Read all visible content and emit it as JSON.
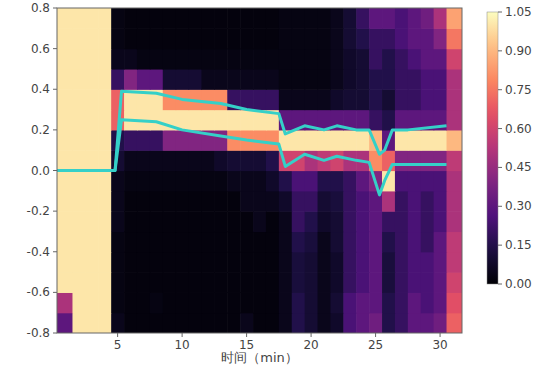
{
  "chart_data": {
    "type": "heatmap",
    "x_label": "时间（min）",
    "xlim": [
      0.3,
      31.7
    ],
    "ylim": [
      -0.8,
      0.8
    ],
    "xticks": [
      5,
      10,
      15,
      20,
      25,
      30
    ],
    "yticks": [
      -0.8,
      -0.6,
      -0.4,
      -0.2,
      {
        "value": 0,
        "label": "0.0"
      },
      0.2,
      0.4,
      0.6,
      0.8
    ],
    "x_edges": [
      0.3,
      1.5,
      2.5,
      3.5,
      4.5,
      5.5,
      6.5,
      7.5,
      8.5,
      9.5,
      10.5,
      11.5,
      12.5,
      13.5,
      14.5,
      15.5,
      16.5,
      17.5,
      18.5,
      19.5,
      20.5,
      21.5,
      22.5,
      23.5,
      24.5,
      25.5,
      26.5,
      27.5,
      28.5,
      29.5,
      30.5,
      31.7
    ],
    "y_edges": [
      -0.8,
      -0.7,
      -0.6,
      -0.5,
      -0.4,
      -0.3,
      -0.2,
      -0.1,
      0.0,
      0.1,
      0.2,
      0.3,
      0.4,
      0.5,
      0.6,
      0.7,
      0.8
    ],
    "cells": [
      [
        0.3,
        1,
        1,
        1,
        0.05,
        0.02,
        0.02,
        0.02,
        0.02,
        0.02,
        0.02,
        0.02,
        0.02,
        0.02,
        0.05,
        0.02,
        0.02,
        0.05,
        0.15,
        0.1,
        0.05,
        0.08,
        0.25,
        0.3,
        0.35,
        0.15,
        0.2,
        0.3,
        0.3,
        0.35,
        0.7
      ],
      [
        0.5,
        1,
        1,
        1,
        0.03,
        0.02,
        0.02,
        0.03,
        0.02,
        0.02,
        0.02,
        0.02,
        0.02,
        0.02,
        0.02,
        0.02,
        0.02,
        0.05,
        0.15,
        0.1,
        0.05,
        0.1,
        0.25,
        0.3,
        0.3,
        0.15,
        0.2,
        0.3,
        0.25,
        0.3,
        0.65
      ],
      [
        1,
        1,
        1,
        1,
        0.03,
        0.02,
        0.02,
        0.02,
        0.02,
        0.02,
        0.02,
        0.02,
        0.02,
        0.02,
        0.02,
        0.02,
        0.02,
        0.05,
        0.12,
        0.1,
        0.05,
        0.08,
        0.2,
        0.25,
        0.3,
        0.12,
        0.2,
        0.25,
        0.25,
        0.3,
        0.6
      ],
      [
        1,
        1,
        1,
        1,
        0.03,
        0.02,
        0.02,
        0.02,
        0.02,
        0.02,
        0.02,
        0.02,
        0.02,
        0.02,
        0.02,
        0.02,
        0.02,
        0.05,
        0.12,
        0.1,
        0.05,
        0.08,
        0.2,
        0.25,
        0.3,
        0.12,
        0.2,
        0.25,
        0.25,
        0.3,
        0.55
      ],
      [
        1,
        1,
        1,
        1,
        0.03,
        0.02,
        0.02,
        0.02,
        0.02,
        0.02,
        0.02,
        0.02,
        0.02,
        0.02,
        0.02,
        0.02,
        0.02,
        0.05,
        0.15,
        0.12,
        0.05,
        0.1,
        0.2,
        0.25,
        0.3,
        0.15,
        0.2,
        0.25,
        0.2,
        0.3,
        0.55
      ],
      [
        1,
        1,
        1,
        1,
        0.05,
        0.02,
        0.02,
        0.02,
        0.02,
        0.02,
        0.02,
        0.02,
        0.02,
        0.02,
        0.02,
        0.05,
        0.02,
        0.05,
        0.2,
        0.15,
        0.08,
        0.1,
        0.2,
        0.25,
        0.3,
        0.2,
        0.2,
        0.25,
        0.2,
        0.25,
        0.5
      ],
      [
        1,
        1,
        1,
        1,
        0.05,
        0.02,
        0.02,
        0.02,
        0.02,
        0.02,
        0.02,
        0.02,
        0.02,
        0.02,
        0.05,
        0.05,
        0.05,
        0.08,
        0.2,
        0.2,
        0.1,
        0.12,
        0.2,
        0.25,
        0.3,
        0.5,
        0.2,
        0.25,
        0.2,
        0.25,
        0.5
      ],
      [
        1,
        1,
        1,
        1,
        0.05,
        0.03,
        0.03,
        0.03,
        0.03,
        0.03,
        0.03,
        0.03,
        0.03,
        0.05,
        0.05,
        0.05,
        0.08,
        0.15,
        0.25,
        0.25,
        0.15,
        0.15,
        0.2,
        0.3,
        0.4,
        1,
        0.25,
        0.25,
        0.25,
        0.25,
        0.5
      ],
      [
        1,
        1,
        1,
        1,
        0.1,
        0.05,
        0.05,
        0.05,
        0.05,
        0.05,
        0.05,
        0.05,
        0.08,
        0.1,
        0.1,
        0.1,
        0.15,
        0.6,
        0.6,
        0.5,
        0.55,
        0.6,
        0.5,
        0.5,
        0.8,
        0.7,
        0.4,
        0.4,
        0.4,
        0.4,
        0.55
      ],
      [
        1,
        1,
        1,
        1,
        0.15,
        0.2,
        0.2,
        0.2,
        0.4,
        0.4,
        0.4,
        0.4,
        0.4,
        0.8,
        0.8,
        0.8,
        0.8,
        1,
        1,
        1,
        1,
        1,
        1,
        1,
        0.9,
        0.3,
        1,
        1,
        1,
        1,
        0.9
      ],
      [
        1,
        1,
        1,
        1,
        0.7,
        1,
        1,
        1,
        1,
        1,
        1,
        1,
        1,
        1,
        1,
        1,
        1,
        0.3,
        0.3,
        0.3,
        0.3,
        0.3,
        0.3,
        0.3,
        0.2,
        0.15,
        0.3,
        0.3,
        0.3,
        0.3,
        0.5
      ],
      [
        1,
        1,
        1,
        1,
        0.7,
        1,
        1,
        1,
        0.8,
        0.8,
        0.8,
        0.8,
        0.8,
        0.2,
        0.2,
        0.2,
        0.2,
        0.05,
        0.05,
        0.05,
        0.05,
        0.08,
        0.1,
        0.1,
        0.15,
        0.1,
        0.2,
        0.2,
        0.25,
        0.25,
        0.5
      ],
      [
        1,
        1,
        1,
        1,
        0.2,
        0.4,
        0.3,
        0.3,
        0.1,
        0.1,
        0.1,
        0.05,
        0.05,
        0.05,
        0.05,
        0.05,
        0.05,
        0.03,
        0.03,
        0.03,
        0.03,
        0.05,
        0.08,
        0.1,
        0.15,
        0.15,
        0.2,
        0.2,
        0.25,
        0.25,
        0.5
      ],
      [
        1,
        1,
        1,
        1,
        0.05,
        0.05,
        0.03,
        0.03,
        0.03,
        0.03,
        0.03,
        0.03,
        0.03,
        0.03,
        0.03,
        0.03,
        0.03,
        0.03,
        0.03,
        0.03,
        0.03,
        0.05,
        0.08,
        0.1,
        0.2,
        0.15,
        0.2,
        0.25,
        0.3,
        0.3,
        0.6
      ],
      [
        1,
        1,
        1,
        1,
        0.03,
        0.02,
        0.02,
        0.02,
        0.02,
        0.02,
        0.02,
        0.02,
        0.02,
        0.02,
        0.02,
        0.02,
        0.02,
        0.03,
        0.03,
        0.03,
        0.03,
        0.05,
        0.1,
        0.15,
        0.2,
        0.2,
        0.25,
        0.3,
        0.3,
        0.4,
        0.75
      ],
      [
        1,
        1,
        1,
        1,
        0.03,
        0.02,
        0.02,
        0.02,
        0.02,
        0.02,
        0.02,
        0.02,
        0.02,
        0.02,
        0.02,
        0.02,
        0.02,
        0.03,
        0.03,
        0.03,
        0.03,
        0.05,
        0.1,
        0.2,
        0.3,
        0.3,
        0.25,
        0.3,
        0.35,
        0.5,
        0.85
      ]
    ],
    "colorbar_range": [
      0,
      1.05
    ],
    "colorbar_ticks": [
      {
        "value": 0,
        "label": "0.00"
      },
      0.15,
      {
        "value": 0.3,
        "label": "0.30"
      },
      0.45,
      {
        "value": 0.6,
        "label": "0.60"
      },
      0.75,
      {
        "value": 0.9,
        "label": "0.90"
      },
      1.05
    ],
    "x": [
      0.3,
      4.8,
      5.3,
      8,
      10,
      13,
      15,
      17.5,
      18,
      19.5,
      21,
      22,
      23.5,
      24.5,
      25.3,
      25.7,
      26.3,
      27.5,
      30.5
    ],
    "series": [
      {
        "type": "line",
        "color": "#35d0c8",
        "values": [
          0,
          0,
          0.39,
          0.38,
          0.35,
          0.33,
          0.3,
          0.28,
          0.18,
          0.22,
          0.2,
          0.22,
          0.2,
          0.2,
          0.08,
          0.1,
          0.2,
          0.2,
          0.22
        ]
      },
      {
        "type": "line",
        "color": "#35d0c8",
        "values": [
          0,
          0,
          0.25,
          0.24,
          0.2,
          0.17,
          0.15,
          0.13,
          0.02,
          0.08,
          0.05,
          0.07,
          0.05,
          0.04,
          -0.12,
          -0.05,
          0.03,
          0.03,
          0.03
        ]
      }
    ]
  }
}
